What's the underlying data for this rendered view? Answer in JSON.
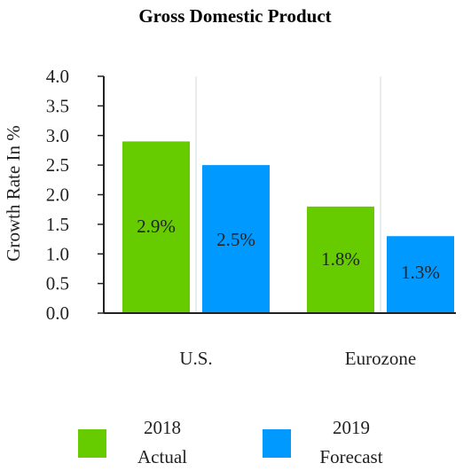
{
  "chart_data": {
    "type": "bar",
    "title": "Gross Domestic Product",
    "ylabel": "Growth Rate In %",
    "xlabel": "",
    "ylim": [
      0,
      4.0
    ],
    "yticks": [
      "0.0",
      "0.5",
      "1.0",
      "1.5",
      "2.0",
      "2.5",
      "3.0",
      "3.5",
      "4.0"
    ],
    "categories": [
      "U.S.",
      "Eurozone"
    ],
    "grid": "vertical",
    "legend_position": "bottom",
    "series": [
      {
        "name_line1": "2018",
        "name_line2": "Actual",
        "color": "#66cc00",
        "values": [
          2.9,
          1.8
        ],
        "labels": [
          "2.9%",
          "1.8%"
        ]
      },
      {
        "name_line1": "2019",
        "name_line2": "Forecast",
        "color": "#0099ff",
        "values": [
          2.5,
          1.3
        ],
        "labels": [
          "2.5%",
          "1.3%"
        ]
      }
    ]
  }
}
